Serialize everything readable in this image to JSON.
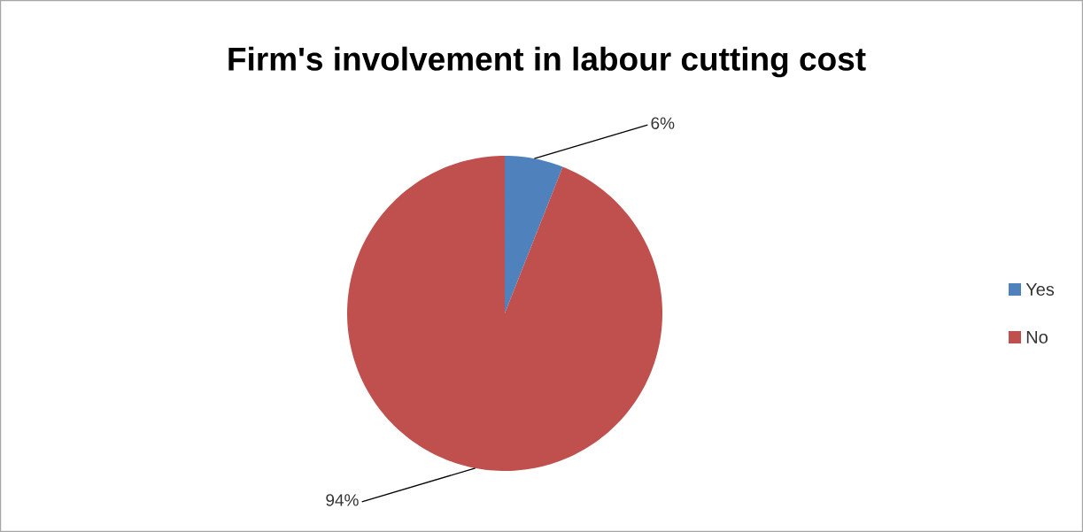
{
  "chart_data": {
    "type": "pie",
    "title": "Firm's involvement in labour cutting cost",
    "categories": [
      "Yes",
      "No"
    ],
    "values": [
      6,
      94
    ],
    "colors": [
      "#4f81bd",
      "#c0504d"
    ],
    "value_labels": [
      "6%",
      "94%"
    ],
    "legend": "right"
  }
}
